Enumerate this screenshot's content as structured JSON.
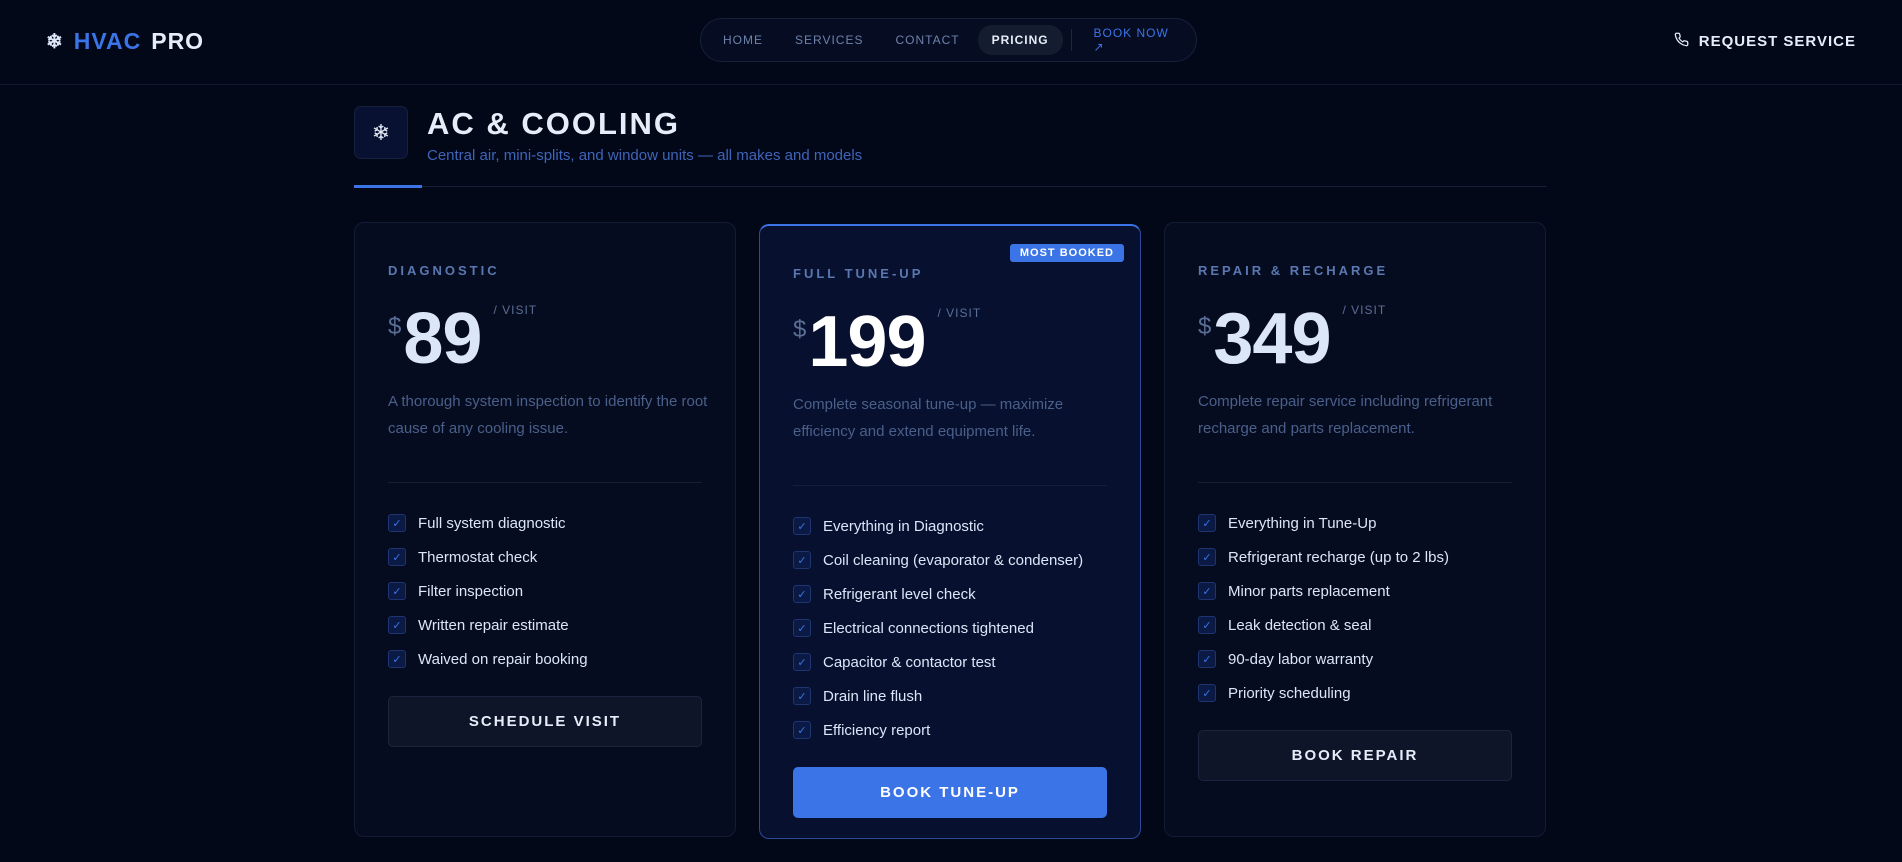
{
  "header": {
    "logo_icon": "snowflake-icon",
    "logo_part1": "HVAC",
    "logo_part2": "PRO",
    "nav": [
      "HOME",
      "SERVICES",
      "CONTACT",
      "PRICING"
    ],
    "nav_active": "PRICING",
    "book_now": "BOOK NOW ↗",
    "request_service": "REQUEST SERVICE",
    "phone_icon": "phone-icon"
  },
  "section": {
    "icon": "snowflake-icon",
    "title": "AC & COOLING",
    "subtitle": "Central air, mini-splits, and window units — all makes and models"
  },
  "colors": {
    "accent": "#3b74e6",
    "background": "#020818"
  },
  "cards": [
    {
      "label": "DIAGNOSTIC",
      "currency": "$",
      "price": "89",
      "per": "/ VISIT",
      "description": "A thorough system inspection to identify the root cause of any cooling issue.",
      "features": [
        "Full system diagnostic",
        "Thermostat check",
        "Filter inspection",
        "Written repair estimate",
        "Waived on repair booking"
      ],
      "button": "SCHEDULE VISIT"
    },
    {
      "label": "FULL TUNE-UP",
      "badge": "MOST BOOKED",
      "currency": "$",
      "price": "199",
      "per": "/ VISIT",
      "description": "Complete seasonal tune-up — maximize efficiency and extend equipment life.",
      "features": [
        "Everything in Diagnostic",
        "Coil cleaning (evaporator & condenser)",
        "Refrigerant level check",
        "Electrical connections tightened",
        "Capacitor & contactor test",
        "Drain line flush",
        "Efficiency report"
      ],
      "button": "BOOK TUNE-UP"
    },
    {
      "label": "REPAIR & RECHARGE",
      "currency": "$",
      "price": "349",
      "per": "/ VISIT",
      "description": "Complete repair service including refrigerant recharge and parts replacement.",
      "features": [
        "Everything in Tune-Up",
        "Refrigerant recharge (up to 2 lbs)",
        "Minor parts replacement",
        "Leak detection & seal",
        "90-day labor warranty",
        "Priority scheduling"
      ],
      "button": "BOOK REPAIR"
    }
  ]
}
